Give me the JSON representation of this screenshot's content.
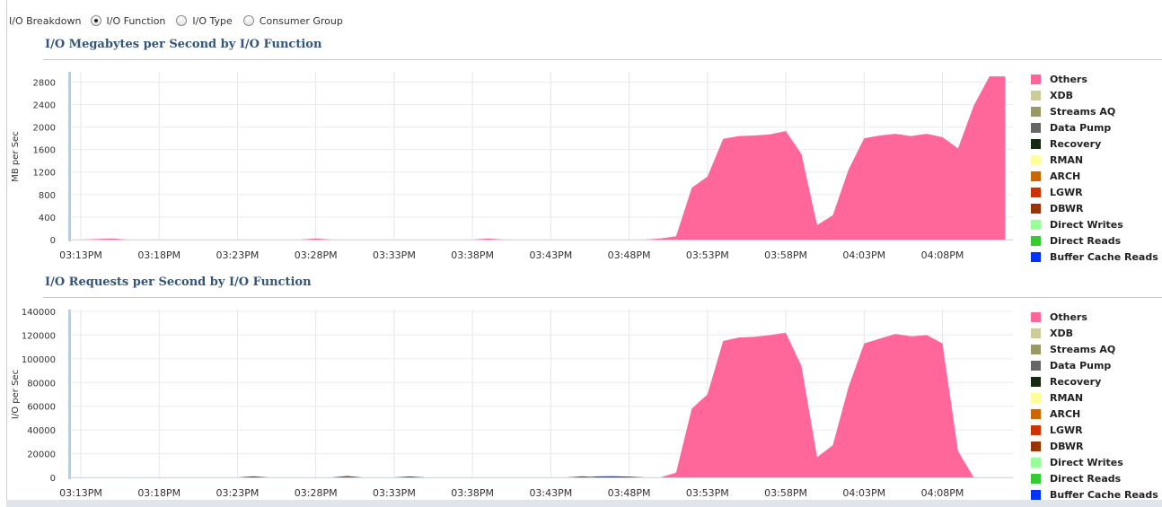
{
  "breakdown": {
    "label": "I/O Breakdown",
    "options": [
      {
        "label": "I/O Function",
        "selected": true
      },
      {
        "label": "I/O Type",
        "selected": false
      },
      {
        "label": "Consumer Group",
        "selected": false
      }
    ]
  },
  "legend": {
    "items": [
      {
        "label": "Others",
        "color": "#ff6699"
      },
      {
        "label": "XDB",
        "color": "#cccc99"
      },
      {
        "label": "Streams AQ",
        "color": "#999966"
      },
      {
        "label": "Data Pump",
        "color": "#666666"
      },
      {
        "label": "Recovery",
        "color": "#142814"
      },
      {
        "label": "RMAN",
        "color": "#ffff99"
      },
      {
        "label": "ARCH",
        "color": "#cc6600"
      },
      {
        "label": "LGWR",
        "color": "#cc3300"
      },
      {
        "label": "DBWR",
        "color": "#993300"
      },
      {
        "label": "Direct Writes",
        "color": "#99ff99"
      },
      {
        "label": "Direct Reads",
        "color": "#33cc33"
      },
      {
        "label": "Buffer Cache Reads",
        "color": "#0033ff"
      }
    ]
  },
  "chart_data": [
    {
      "type": "area",
      "title": "I/O Megabytes per Second by I/O Function",
      "ylabel": "MB per Sec",
      "xlabel": "",
      "ylim": [
        0,
        2950
      ],
      "yticks": [
        0,
        400,
        800,
        1200,
        1600,
        2000,
        2400,
        2800
      ],
      "xlim": [
        0,
        59.5
      ],
      "xticks": [
        {
          "t": 0,
          "label": "03:13PM"
        },
        {
          "t": 5,
          "label": "03:18PM"
        },
        {
          "t": 10,
          "label": "03:23PM"
        },
        {
          "t": 15,
          "label": "03:28PM"
        },
        {
          "t": 20,
          "label": "03:33PM"
        },
        {
          "t": 25,
          "label": "03:38PM"
        },
        {
          "t": 30,
          "label": "03:43PM"
        },
        {
          "t": 35,
          "label": "03:48PM"
        },
        {
          "t": 40,
          "label": "03:53PM"
        },
        {
          "t": 45,
          "label": "03:58PM"
        },
        {
          "t": 50,
          "label": "04:03PM"
        },
        {
          "t": 55,
          "label": "04:08PM"
        }
      ],
      "grid": true,
      "legend_position": "right",
      "series": [
        {
          "name": "RMAN",
          "x": [
            48,
            49,
            50,
            51,
            52,
            53,
            54,
            55
          ],
          "values": [
            0,
            30,
            120,
            120,
            80,
            50,
            20,
            0
          ]
        },
        {
          "name": "Others",
          "x": [
            0,
            2,
            3,
            14,
            15,
            16,
            25,
            26,
            27,
            36,
            37,
            38,
            39,
            40,
            41,
            42,
            43,
            44,
            45,
            46,
            47,
            48,
            49,
            50,
            51,
            52,
            53,
            54,
            55,
            56,
            57,
            58,
            59
          ],
          "values": [
            0,
            20,
            0,
            0,
            20,
            0,
            0,
            20,
            0,
            0,
            20,
            60,
            920,
            1120,
            1790,
            1840,
            1850,
            1870,
            1930,
            1520,
            260,
            430,
            1240,
            1800,
            1850,
            1880,
            1840,
            1880,
            1820,
            1620,
            2380,
            2900,
            2900
          ]
        }
      ]
    },
    {
      "type": "area",
      "title": "I/O Requests per Second by I/O Function",
      "ylabel": "I/O per Sec",
      "xlabel": "",
      "ylim": [
        0,
        140000
      ],
      "yticks": [
        0,
        20000,
        40000,
        60000,
        80000,
        100000,
        120000,
        140000
      ],
      "xlim": [
        0,
        59.5
      ],
      "xticks": [
        {
          "t": 0,
          "label": "03:13PM"
        },
        {
          "t": 5,
          "label": "03:18PM"
        },
        {
          "t": 10,
          "label": "03:23PM"
        },
        {
          "t": 15,
          "label": "03:28PM"
        },
        {
          "t": 20,
          "label": "03:33PM"
        },
        {
          "t": 25,
          "label": "03:38PM"
        },
        {
          "t": 30,
          "label": "03:43PM"
        },
        {
          "t": 35,
          "label": "03:48PM"
        },
        {
          "t": 40,
          "label": "03:53PM"
        },
        {
          "t": 45,
          "label": "03:58PM"
        },
        {
          "t": 50,
          "label": "04:03PM"
        },
        {
          "t": 55,
          "label": "04:08PM"
        }
      ],
      "grid": true,
      "legend_position": "right",
      "series": [
        {
          "name": "DBWR",
          "x": [
            10,
            11,
            12,
            16,
            17,
            18,
            20,
            21,
            22,
            31,
            32,
            33
          ],
          "values": [
            0,
            900,
            0,
            0,
            1100,
            0,
            0,
            800,
            0,
            0,
            900,
            0
          ]
        },
        {
          "name": "Buffer Cache Reads",
          "x": [
            32,
            33,
            34,
            35,
            36
          ],
          "values": [
            0,
            800,
            1000,
            700,
            0
          ]
        },
        {
          "name": "Others",
          "x": [
            0,
            37,
            38,
            39,
            40,
            41,
            42,
            43,
            44,
            45,
            46,
            47,
            48,
            49,
            50,
            51,
            52,
            53,
            54,
            55,
            56,
            57
          ],
          "values": [
            0,
            0,
            4000,
            58000,
            70000,
            115000,
            118000,
            118500,
            120000,
            122000,
            94000,
            17000,
            27000,
            76000,
            113000,
            117000,
            121000,
            119000,
            120000,
            113000,
            22000,
            0
          ]
        }
      ]
    }
  ]
}
